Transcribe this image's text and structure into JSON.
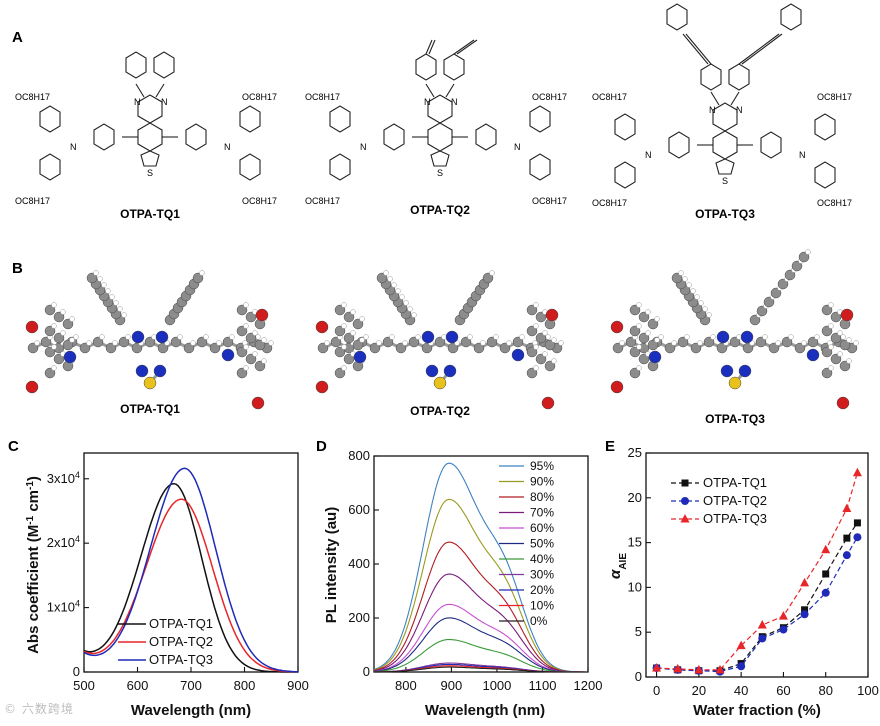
{
  "panels": {
    "a": "A",
    "b": "B",
    "c": "C",
    "d": "D",
    "e": "E"
  },
  "molecules": {
    "names": [
      "OTPA-TQ1",
      "OTPA-TQ2",
      "OTPA-TQ3"
    ],
    "substituent": "OC8H17",
    "atoms": {
      "N": "N",
      "S": "S"
    }
  },
  "watermark": "© 六数跨境",
  "colors": {
    "black": "#111111",
    "red": "#e8262a",
    "blue": "#1f2bb8",
    "atom_c": "#8c8c8c",
    "atom_n": "#1b2fbf",
    "atom_o": "#d01c1c",
    "atom_s": "#e8c21b"
  },
  "chart_data": [
    {
      "type": "line",
      "panel": "C",
      "xlabel": "Wavelength (nm)",
      "ylabel": "Abs coefficient (M-1 cm-1)",
      "xlim": [
        500,
        900
      ],
      "ylim": [
        0,
        34000
      ],
      "x_ticks": [
        "500",
        "600",
        "700",
        "800",
        "900"
      ],
      "y_ticks": [
        "0",
        "1x10^4",
        "2x10^4",
        "3x10^4"
      ],
      "series": [
        {
          "name": "OTPA-TQ1",
          "color": "#111111",
          "peak_x": 668,
          "peak_y": 29200,
          "x": [
            500,
            550,
            600,
            640,
            668,
            700,
            750,
            800,
            850,
            900
          ],
          "y": [
            2600,
            8500,
            19800,
            27200,
            29200,
            26600,
            14100,
            3500,
            500,
            0
          ]
        },
        {
          "name": "OTPA-TQ2",
          "color": "#e8262a",
          "peak_x": 682,
          "peak_y": 26800,
          "x": [
            500,
            550,
            600,
            640,
            682,
            720,
            760,
            800,
            850,
            900
          ],
          "y": [
            2900,
            8300,
            17400,
            23800,
            26800,
            23700,
            14100,
            5200,
            800,
            0
          ]
        },
        {
          "name": "OTPA-TQ3",
          "color": "#1f2bb8",
          "peak_x": 688,
          "peak_y": 31600,
          "x": [
            500,
            550,
            600,
            640,
            688,
            720,
            760,
            800,
            850,
            900
          ],
          "y": [
            3200,
            8800,
            19400,
            27200,
            31600,
            28900,
            18400,
            6600,
            1000,
            0
          ]
        }
      ]
    },
    {
      "type": "line",
      "panel": "D",
      "xlabel": "Wavelength (nm)",
      "ylabel": "PL intensity (au)",
      "xlim": [
        730,
        1200
      ],
      "ylim": [
        0,
        800
      ],
      "x_ticks": [
        "800",
        "900",
        "1000",
        "1100",
        "1200"
      ],
      "y_ticks": [
        "0",
        "200",
        "400",
        "600",
        "800"
      ],
      "peak_wavelength": 893,
      "series": [
        {
          "name": "95%",
          "color": "#3f83c2",
          "peak": 772
        },
        {
          "name": "90%",
          "color": "#9a9a1f",
          "peak": 638
        },
        {
          "name": "80%",
          "color": "#b01c20",
          "peak": 480
        },
        {
          "name": "70%",
          "color": "#7a1a7a",
          "peak": 362
        },
        {
          "name": "60%",
          "color": "#c94fd1",
          "peak": 250
        },
        {
          "name": "50%",
          "color": "#1d2a80",
          "peak": 200
        },
        {
          "name": "40%",
          "color": "#3a9a3a",
          "peak": 120
        },
        {
          "name": "30%",
          "color": "#7d3a9a",
          "peak": 33
        },
        {
          "name": "20%",
          "color": "#1f2bb8",
          "peak": 28
        },
        {
          "name": "10%",
          "color": "#e8262a",
          "peak": 23
        },
        {
          "name": "0%",
          "color": "#222222",
          "peak": 18
        }
      ]
    },
    {
      "type": "scatter",
      "panel": "E",
      "xlabel": "Water fraction (%)",
      "ylabel": "αAIE",
      "xlim": [
        -5,
        100
      ],
      "ylim": [
        0,
        25
      ],
      "x_ticks": [
        "0",
        "20",
        "40",
        "60",
        "80",
        "100"
      ],
      "y_ticks": [
        "0",
        "5",
        "10",
        "15",
        "20",
        "25"
      ],
      "x": [
        0,
        10,
        20,
        30,
        40,
        50,
        60,
        70,
        80,
        90,
        95
      ],
      "series": [
        {
          "name": "OTPA-TQ1",
          "color": "#111111",
          "marker": "square",
          "y": [
            1.0,
            0.8,
            0.7,
            0.7,
            1.5,
            4.5,
            5.5,
            7.5,
            11.5,
            15.5,
            17.2
          ]
        },
        {
          "name": "OTPA-TQ2",
          "color": "#1f2bb8",
          "marker": "circle",
          "y": [
            1.0,
            0.8,
            0.7,
            0.6,
            1.2,
            4.3,
            5.3,
            7.0,
            9.4,
            13.6,
            15.6
          ]
        },
        {
          "name": "OTPA-TQ3",
          "color": "#e8262a",
          "marker": "triangle",
          "y": [
            1.0,
            0.9,
            0.8,
            0.8,
            3.5,
            5.8,
            6.8,
            10.5,
            14.2,
            18.8,
            22.8
          ]
        }
      ]
    }
  ]
}
